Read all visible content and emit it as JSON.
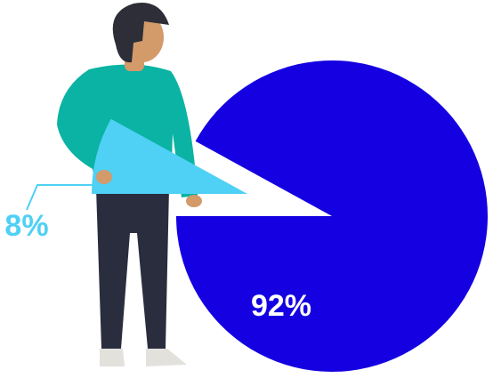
{
  "chart_data": {
    "type": "pie",
    "values": [
      92,
      8
    ],
    "value_labels": [
      "92%",
      "8%"
    ],
    "colors": [
      "#1400e0",
      "#4fd0f5"
    ]
  }
}
